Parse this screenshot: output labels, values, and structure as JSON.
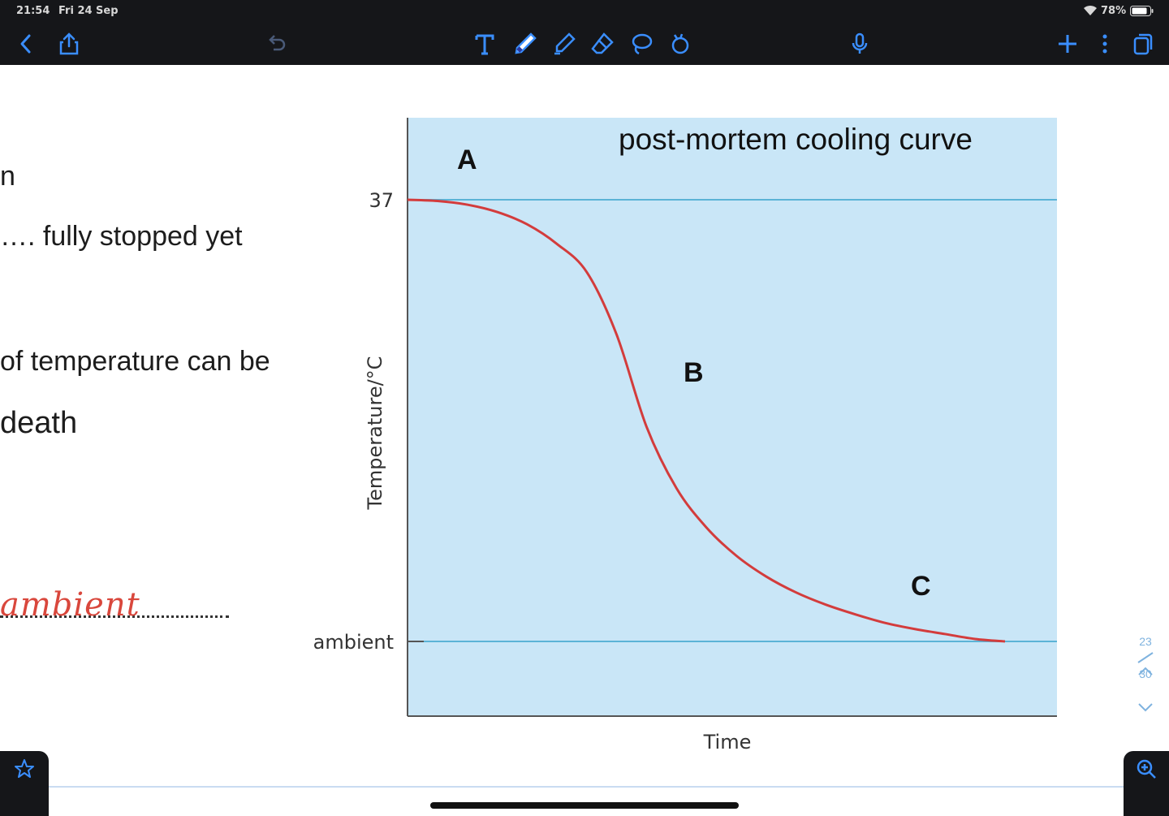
{
  "status_bar": {
    "time": "21:54",
    "date": "Fri 24 Sep",
    "battery": "78%"
  },
  "toolbar": {
    "icons": [
      "back-icon",
      "share-icon",
      "undo-icon",
      "text-tool-icon",
      "pen-icon",
      "highlighter-icon",
      "eraser-icon",
      "lasso-icon",
      "shapes-icon",
      "microphone-icon",
      "add-icon",
      "more-icon",
      "pages-icon"
    ],
    "accent_color": "#1f84ff"
  },
  "document": {
    "lines": [
      "n",
      "…. fully stopped yet",
      "of temperature can be",
      "death"
    ],
    "handwritten_answer": "ambient",
    "handwriting_color": "#d9473c"
  },
  "chart_data": {
    "type": "line",
    "title": "post-mortem cooling curve",
    "xlabel": "Time",
    "ylabel": "Temperature/°C",
    "ytick_labels": [
      "37",
      "ambient"
    ],
    "annotations": [
      "A",
      "B",
      "C"
    ],
    "series": [
      {
        "x": [
          0,
          0.05,
          0.1,
          0.15,
          0.2,
          0.25,
          0.3,
          0.35,
          0.4,
          0.45,
          0.5,
          0.55,
          0.6,
          0.65,
          0.7,
          0.75,
          0.8,
          0.85,
          0.9,
          0.95,
          1.0
        ],
        "y": [
          37,
          36.9,
          36.6,
          36.0,
          35.0,
          33.4,
          31.1,
          26.0,
          18.5,
          13.5,
          10.3,
          8.0,
          6.3,
          5.0,
          4.0,
          3.2,
          2.5,
          2.0,
          1.6,
          1.2,
          1.0
        ]
      }
    ],
    "line_color": "#d33c3c",
    "background_color": "#c9e6f7",
    "reference_line_color": "#5bb3d6"
  },
  "page_indicator": {
    "current": "23",
    "total": "30"
  }
}
